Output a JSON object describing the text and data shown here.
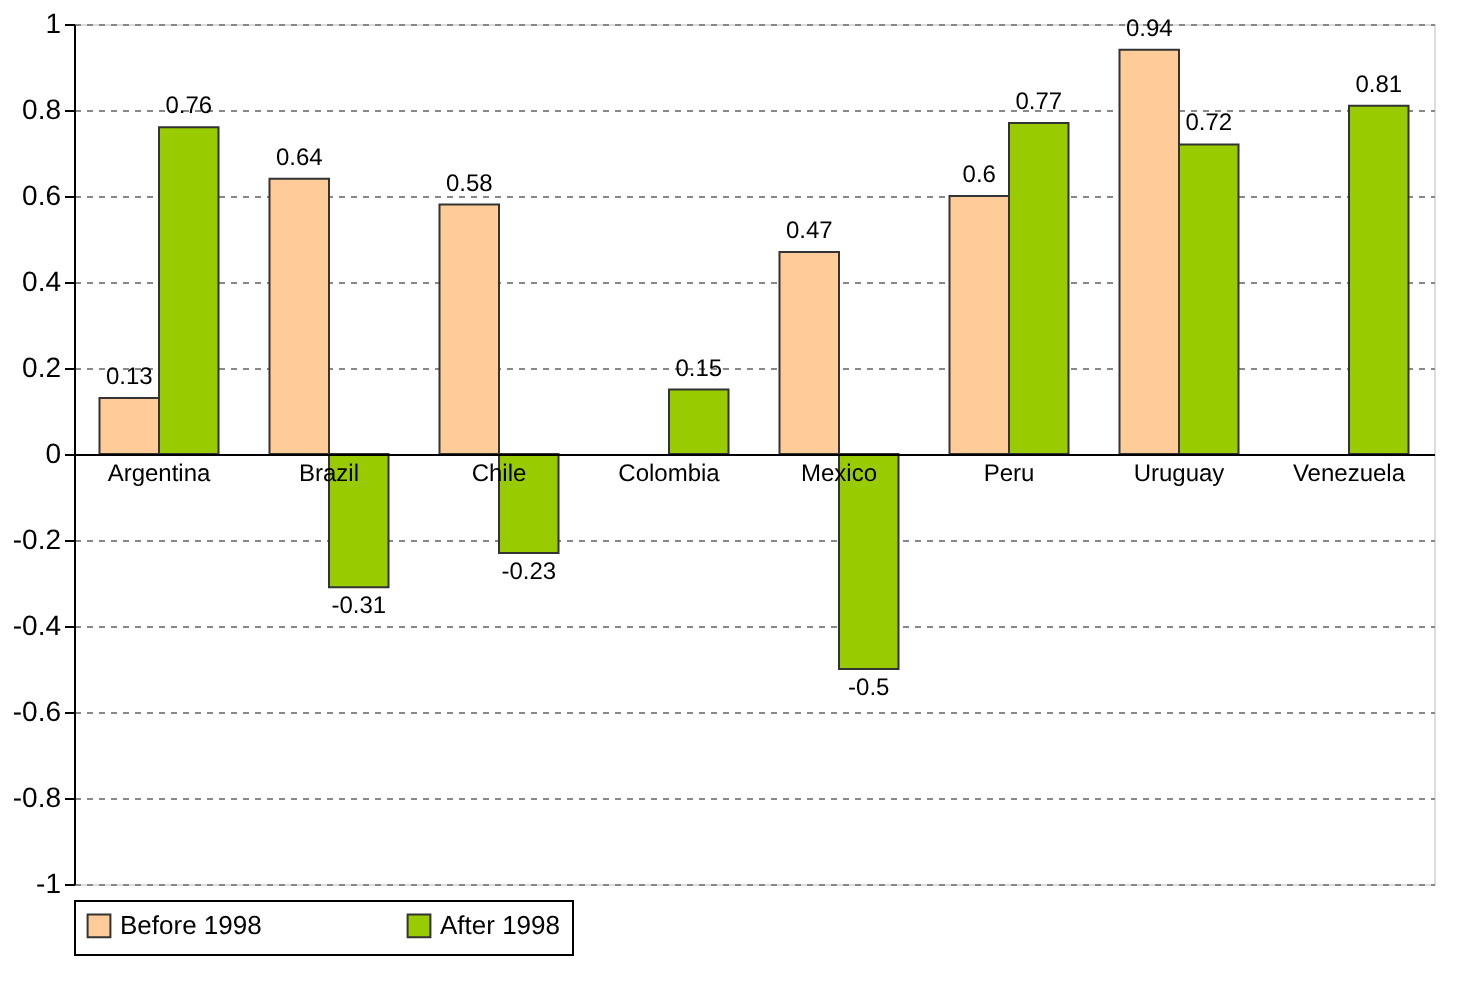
{
  "chart_data": {
    "type": "bar",
    "categories": [
      "Argentina",
      "Brazil",
      "Chile",
      "Colombia",
      "Mexico",
      "Peru",
      "Uruguay",
      "Venezuela"
    ],
    "series": [
      {
        "name": "Before 1998",
        "color": "#ffcc99",
        "values": [
          0.13,
          0.64,
          0.58,
          null,
          0.47,
          0.6,
          0.94,
          null
        ]
      },
      {
        "name": "After 1998",
        "color": "#99cc00",
        "values": [
          0.76,
          -0.31,
          -0.23,
          0.15,
          -0.5,
          0.77,
          0.72,
          0.81
        ]
      }
    ],
    "ylim": [
      -1,
      1
    ],
    "yticks": [
      -1,
      -0.8,
      -0.6,
      -0.4,
      -0.2,
      0,
      0.2,
      0.4,
      0.6,
      0.8,
      1
    ],
    "grid": "y",
    "legend": "bottom",
    "data_labels": true
  }
}
